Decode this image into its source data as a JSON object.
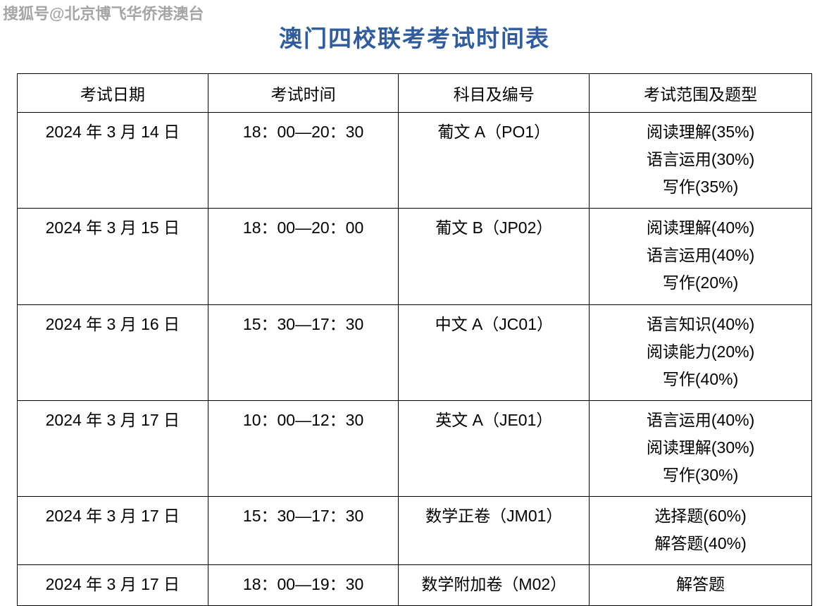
{
  "watermark": "搜狐号@北京博飞华侨港澳台",
  "title": "澳门四校联考考试时间表",
  "table": {
    "headers": {
      "date": "考试日期",
      "time": "考试时间",
      "subject": "科目及编号",
      "scope": "考试范围及题型"
    },
    "rows": [
      {
        "date": "2024 年 3 月 14 日",
        "time": "18：00—20：30",
        "subject": "葡文 A（PO1）",
        "scope1": "阅读理解(35%)",
        "scope2": "语言运用(30%)",
        "scope3": "写作(35%)"
      },
      {
        "date": "2024 年 3 月 15 日",
        "time": "18：00—20：00",
        "subject": "葡文 B（JP02）",
        "scope1": "阅读理解(40%)",
        "scope2": "语言运用(40%)",
        "scope3": "写作(20%)"
      },
      {
        "date": "2024 年 3 月 16 日",
        "time": "15：30—17：30",
        "subject": "中文 A（JC01）",
        "scope1": "语言知识(40%)",
        "scope2": "阅读能力(20%)",
        "scope3": "写作(40%)"
      },
      {
        "date": "2024 年 3 月 17 日",
        "time": "10：00—12：30",
        "subject": "英文 A（JE01）",
        "scope1": "语言运用(40%)",
        "scope2": "阅读理解(30%)",
        "scope3": "写作(30%)"
      },
      {
        "date": "2024 年 3 月 17 日",
        "time": "15：30—17：30",
        "subject": "数学正卷（JM01）",
        "scope1": "选择题(60%)",
        "scope2": "解答题(40%)",
        "scope3": ""
      },
      {
        "date": "2024 年 3 月 17 日",
        "time": "18：00—19：30",
        "subject": "数学附加卷（M02）",
        "scope1": "解答题",
        "scope2": "",
        "scope3": ""
      }
    ]
  },
  "styling": {
    "title_color": "#2e5c9e",
    "title_fontsize": 33,
    "border_color": "#000000",
    "cell_fontsize": 23,
    "background_color": "#ffffff",
    "watermark_color": "#808080",
    "column_widths": [
      "24%",
      "24%",
      "24%",
      "28%"
    ]
  }
}
